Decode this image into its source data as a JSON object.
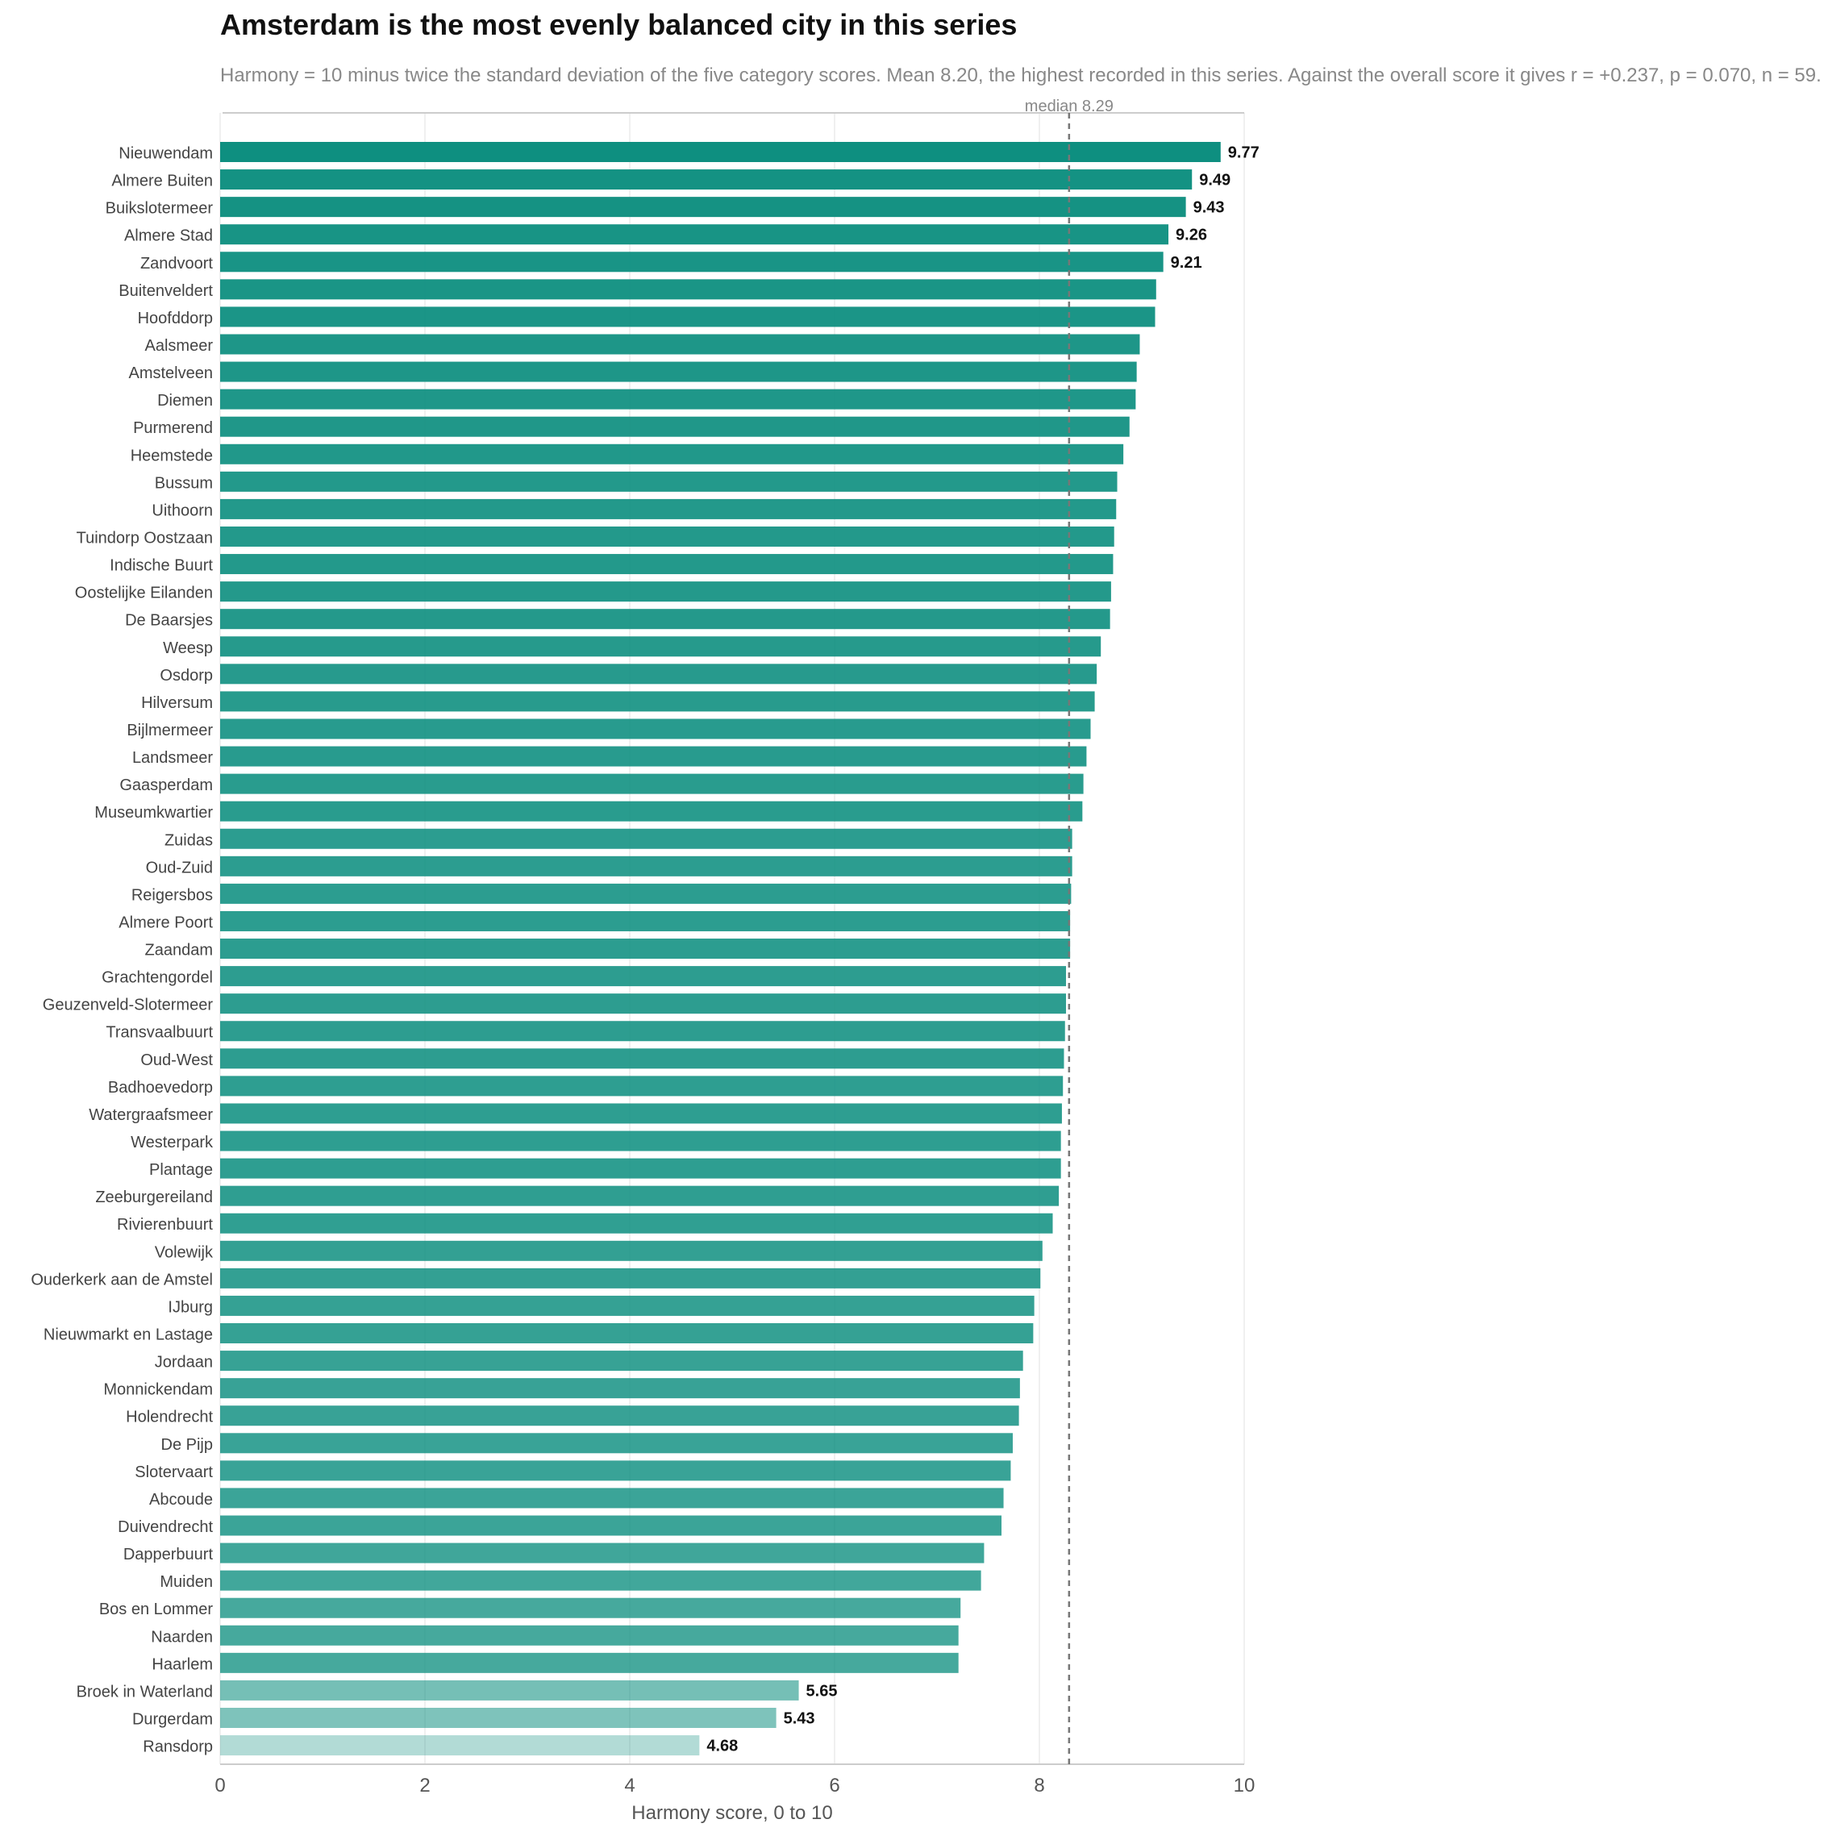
{
  "chart_data": {
    "type": "bar",
    "orientation": "horizontal",
    "title": "Amsterdam is the most evenly balanced city in this series",
    "subtitle": "Harmony = 10 minus twice the standard deviation of the five category scores. Mean 8.20, the highest recorded in this series. Against the overall score it gives r = +0.237, p = 0.070, n = 59.",
    "xlabel": "Harmony score, 0 to 10",
    "ylabel": "",
    "xlim": [
      0,
      10
    ],
    "xticks": [
      0,
      2,
      4,
      6,
      8,
      10
    ],
    "grid": true,
    "bar_color": "#0e8f80",
    "annotation": {
      "label": "median 8.29",
      "value": 8.29
    },
    "categories": [
      "Nieuwendam",
      "Almere Buiten",
      "Buikslotermeer",
      "Almere Stad",
      "Zandvoort",
      "Buitenveldert",
      "Hoofddorp",
      "Aalsmeer",
      "Amstelveen",
      "Diemen",
      "Purmerend",
      "Heemstede",
      "Bussum",
      "Uithoorn",
      "Tuindorp Oostzaan",
      "Indische Buurt",
      "Oostelijke Eilanden",
      "De Baarsjes",
      "Weesp",
      "Osdorp",
      "Hilversum",
      "Bijlmermeer",
      "Landsmeer",
      "Gaasperdam",
      "Museumkwartier",
      "Zuidas",
      "Oud-Zuid",
      "Reigersbos",
      "Almere Poort",
      "Zaandam",
      "Grachtengordel",
      "Geuzenveld-Slotermeer",
      "Transvaalbuurt",
      "Oud-West",
      "Badhoevedorp",
      "Watergraafsmeer",
      "Westerpark",
      "Plantage",
      "Zeeburgereiland",
      "Rivierenbuurt",
      "Volewijk",
      "Ouderkerk aan de Amstel",
      "IJburg",
      "Nieuwmarkt en Lastage",
      "Jordaan",
      "Monnickendam",
      "Holendrecht",
      "De Pijp",
      "Slotervaart",
      "Abcoude",
      "Duivendrecht",
      "Dapperbuurt",
      "Muiden",
      "Bos en Lommer",
      "Naarden",
      "Haarlem",
      "Broek in Waterland",
      "Durgerdam",
      "Ransdorp"
    ],
    "values": [
      9.77,
      9.49,
      9.43,
      9.26,
      9.21,
      9.14,
      9.13,
      8.98,
      8.95,
      8.94,
      8.88,
      8.82,
      8.76,
      8.75,
      8.73,
      8.72,
      8.7,
      8.69,
      8.6,
      8.56,
      8.54,
      8.5,
      8.46,
      8.43,
      8.42,
      8.32,
      8.32,
      8.31,
      8.3,
      8.3,
      8.26,
      8.26,
      8.25,
      8.24,
      8.23,
      8.22,
      8.21,
      8.21,
      8.19,
      8.13,
      8.03,
      8.01,
      7.95,
      7.94,
      7.84,
      7.81,
      7.8,
      7.74,
      7.72,
      7.65,
      7.63,
      7.46,
      7.43,
      7.23,
      7.21,
      7.21,
      5.65,
      5.43,
      4.68
    ],
    "value_labels": [
      "9.77",
      "9.49",
      "9.43",
      "9.26",
      "9.21",
      "",
      "",
      "",
      "",
      "",
      "",
      "",
      "",
      "",
      "",
      "",
      "",
      "",
      "",
      "",
      "",
      "",
      "",
      "",
      "",
      "",
      "",
      "",
      "",
      "",
      "",
      "",
      "",
      "",
      "",
      "",
      "",
      "",
      "",
      "",
      "",
      "",
      "",
      "",
      "",
      "",
      "",
      "",
      "",
      "",
      "",
      "",
      "",
      "",
      "",
      "",
      "5.65",
      "5.43",
      "4.68"
    ]
  }
}
